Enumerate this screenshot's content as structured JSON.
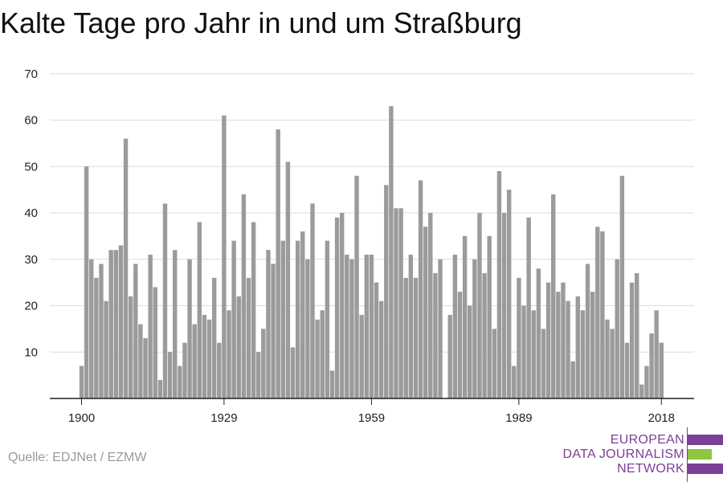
{
  "title": "Kalte Tage pro Jahr in und um Straßburg",
  "source": "Quelle: EDJNet / EZMW",
  "logo": {
    "line1": "EUROPEAN",
    "line2": "DATA JOURNALISM",
    "line3": "NETWORK",
    "colors": {
      "purple": "#7b3f98",
      "green": "#8dc63f"
    }
  },
  "chart_data": {
    "type": "bar",
    "title": "Kalte Tage pro Jahr in und um Straßburg",
    "xlabel": "",
    "ylabel": "",
    "x_start": 1900,
    "x_end": 2018,
    "x_ticks": [
      1900,
      1929,
      1959,
      1989,
      2018
    ],
    "y_ticks": [
      10,
      20,
      30,
      40,
      50,
      60,
      70
    ],
    "ylim": [
      0,
      70
    ],
    "grid": true,
    "bar_color": "#9b9b9b",
    "values": [
      7,
      50,
      30,
      26,
      29,
      21,
      32,
      32,
      33,
      56,
      22,
      29,
      16,
      13,
      31,
      24,
      4,
      42,
      10,
      32,
      7,
      12,
      30,
      16,
      38,
      18,
      17,
      26,
      12,
      61,
      19,
      34,
      22,
      44,
      26,
      38,
      10,
      15,
      32,
      29,
      58,
      34,
      51,
      11,
      34,
      36,
      30,
      42,
      17,
      19,
      34,
      6,
      39,
      40,
      31,
      30,
      48,
      18,
      31,
      31,
      25,
      21,
      46,
      63,
      41,
      41,
      26,
      31,
      26,
      47,
      37,
      40,
      27,
      30,
      0,
      18,
      31,
      23,
      35,
      20,
      30,
      40,
      27,
      35,
      15,
      49,
      40,
      45,
      7,
      26,
      20,
      39,
      19,
      28,
      15,
      25,
      44,
      23,
      25,
      21,
      8,
      22,
      19,
      29,
      23,
      37,
      36,
      17,
      15,
      30,
      48,
      12,
      25,
      27,
      3,
      7,
      14,
      19,
      12
    ]
  }
}
